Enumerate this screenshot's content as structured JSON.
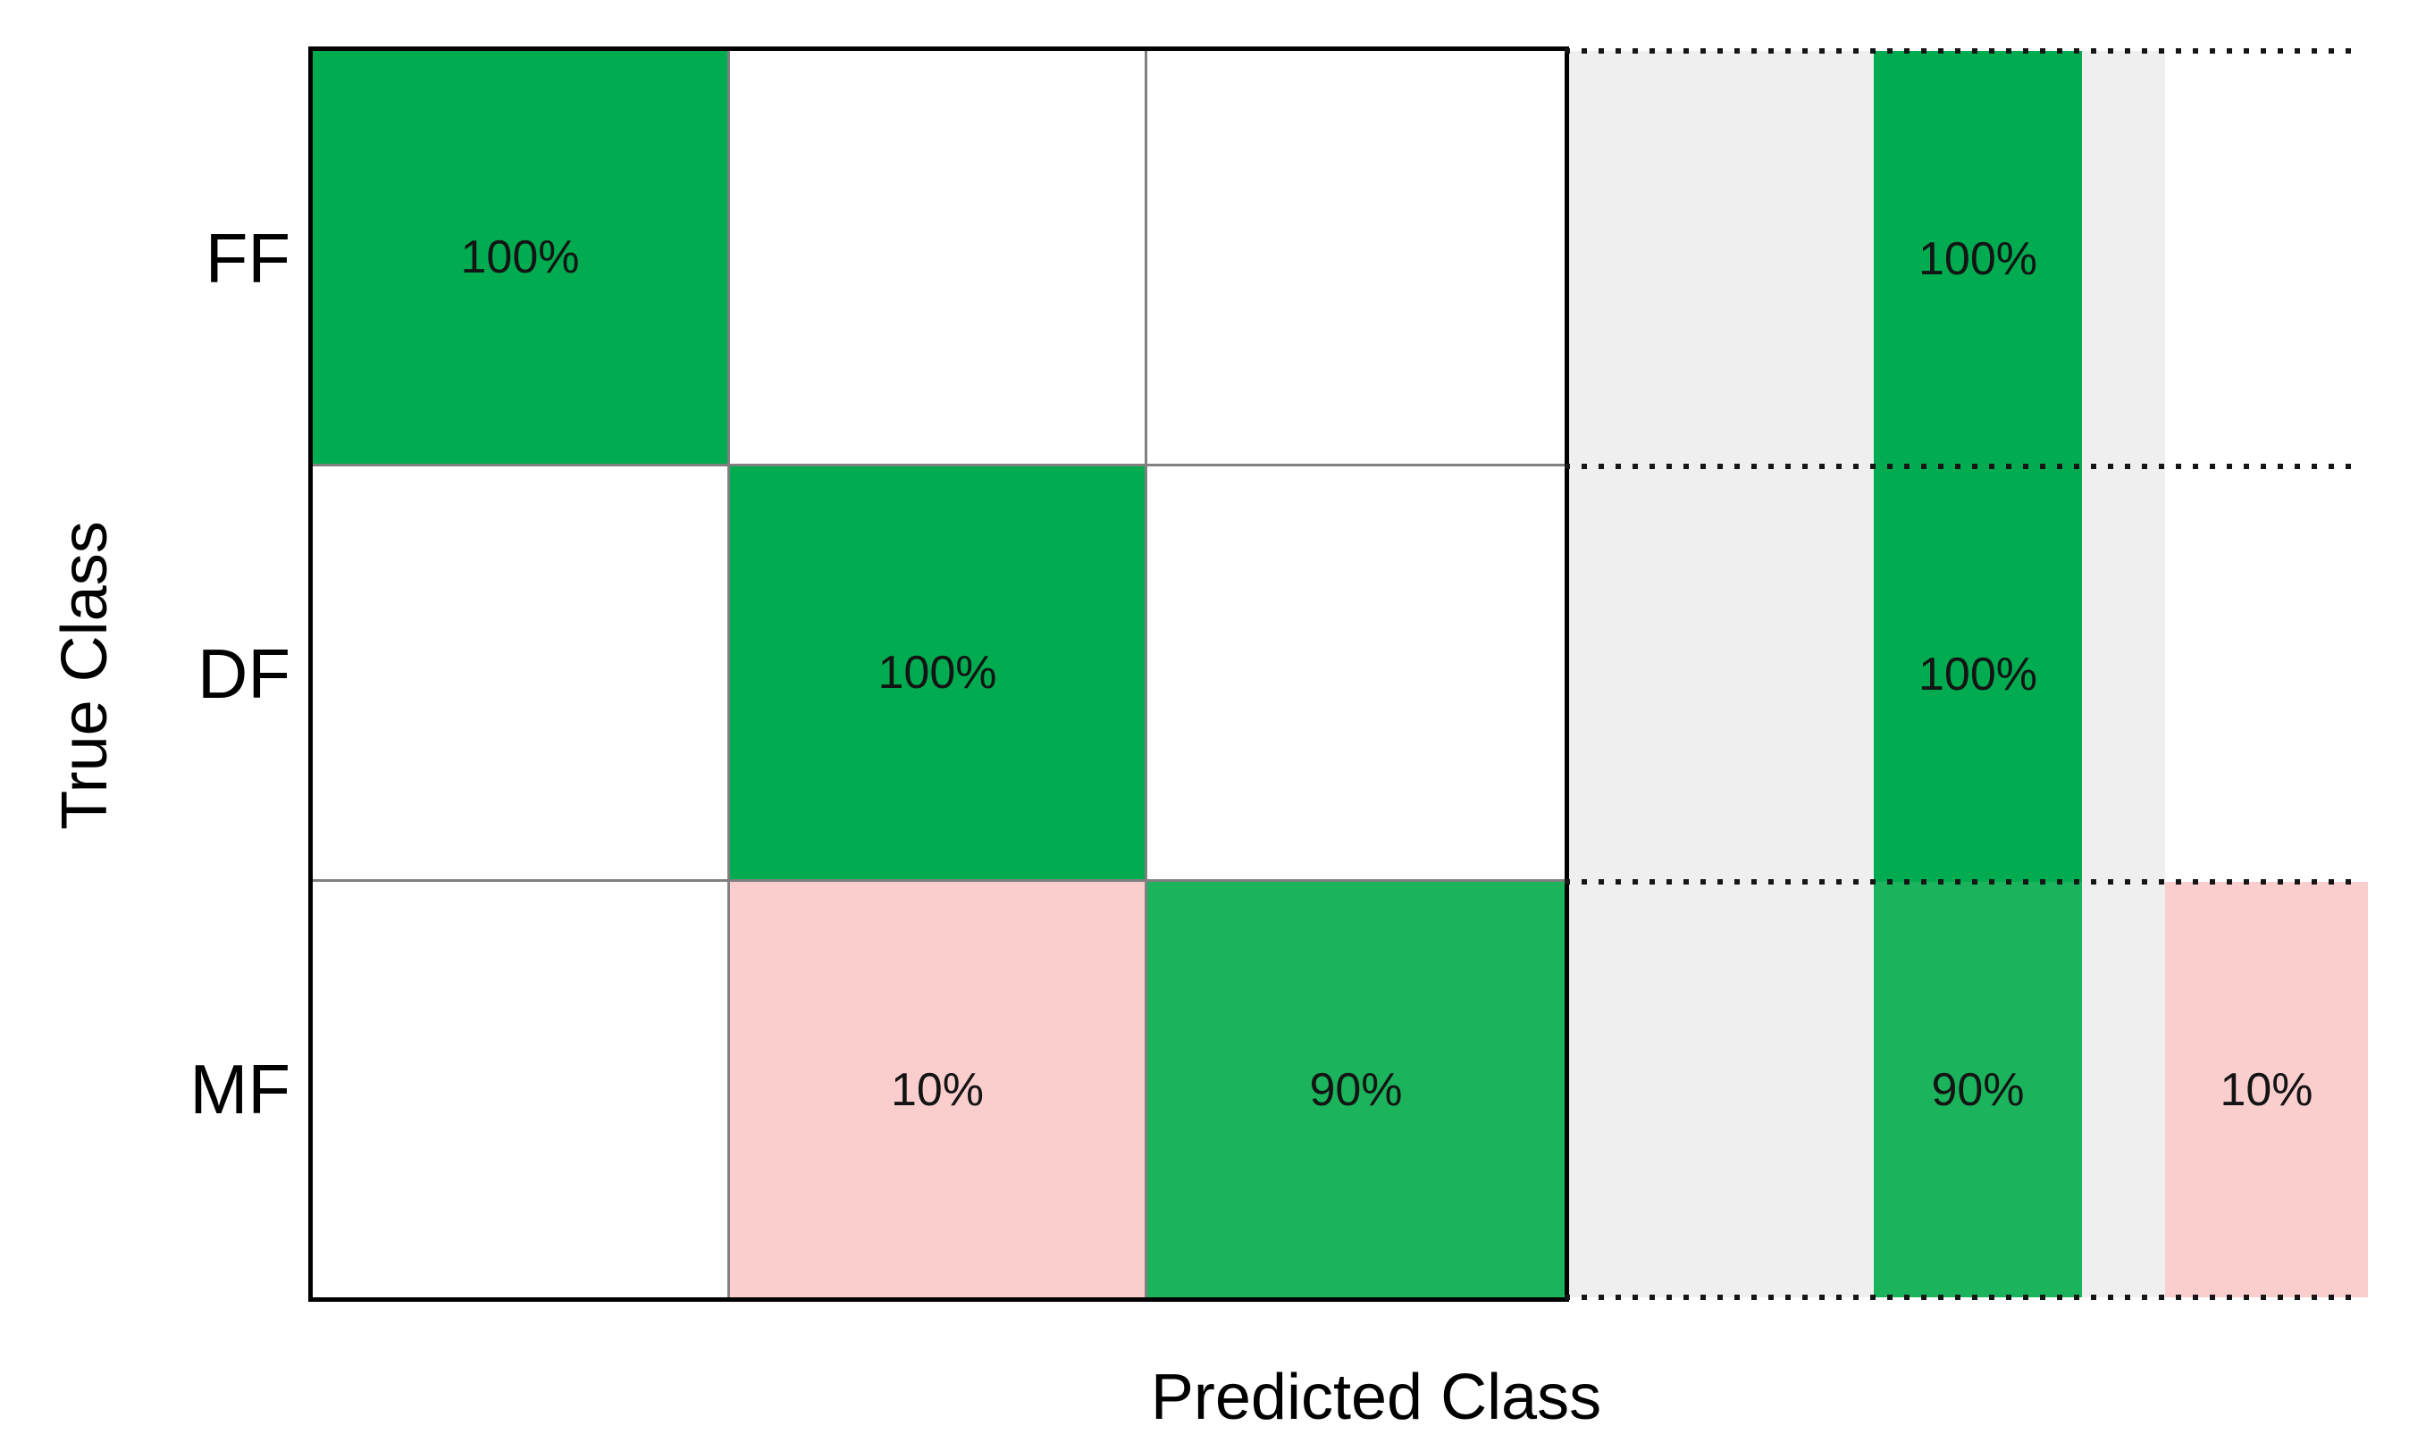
{
  "figure": {
    "x_axis_title": "Predicted Class",
    "y_axis_title": "True Class"
  },
  "row_labels": [
    "FF",
    "DF",
    "MF"
  ],
  "cells": {
    "r0c0": "100%",
    "r0c1": "",
    "r0c2": "",
    "r1c0": "",
    "r1c1": "100%",
    "r1c2": "",
    "r2c0": "",
    "r2c1": "10%",
    "r2c2": "90%"
  },
  "summary": {
    "tpr": [
      "100%",
      "100%",
      "90%"
    ],
    "fnr": [
      "",
      "",
      "10%"
    ]
  },
  "colors": {
    "green_full": "#00AC4F",
    "green_90": "#1BB45C",
    "pink": "#FBCECE",
    "summary_bg": "#EFEFEF",
    "cell_white": "#FFFFFF",
    "grid_line": "#808080",
    "outer_border": "#000000",
    "text": "#141414"
  },
  "chart_data": {
    "type": "heatmap",
    "subtype": "confusion-matrix",
    "title": "",
    "xlabel": "Predicted Class",
    "ylabel": "True Class",
    "classes": [
      "FF",
      "DF",
      "MF"
    ],
    "normalization": "row-percent",
    "matrix_pct": [
      [
        100,
        0,
        0
      ],
      [
        0,
        100,
        0
      ],
      [
        0,
        10,
        90
      ]
    ],
    "row_summary": {
      "tpr_pct": [
        100,
        100,
        90
      ],
      "fnr_pct": [
        0,
        0,
        10
      ]
    },
    "legend_position": "none",
    "grid": "solid-inside-matrix, dotted-in-summary",
    "diagonal_color_full": "#00AC4F",
    "diagonal_color_90": "#1BB45C",
    "offdiagonal_color": "#FBCECE",
    "summary_background": "#EFEFEF"
  }
}
